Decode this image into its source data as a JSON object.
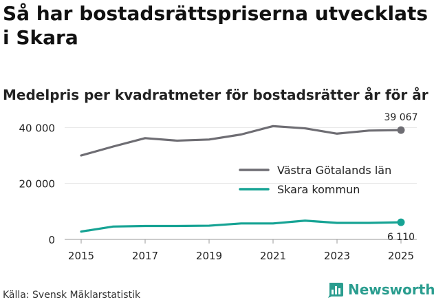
{
  "title": "Så har bostadsrättspriserna utvecklats i Skara",
  "subtitle": "Medelpris per kvadratmeter för bostadsrätter år för år",
  "source": "Källa: Svensk Mäklarstatistik",
  "brand": {
    "name": "Newsworthy",
    "icon": "bar-chart-icon"
  },
  "colors": {
    "series_1": "#6e6d73",
    "series_2": "#16a394",
    "brand": "#2a9d8f"
  },
  "chart_data": {
    "type": "line",
    "x": [
      2015,
      2016,
      2017,
      2018,
      2019,
      2020,
      2021,
      2022,
      2023,
      2024,
      2025
    ],
    "x_ticks": [
      "2015",
      "2017",
      "2019",
      "2021",
      "2023",
      "2025"
    ],
    "y_ticks": [
      "0",
      "20 000",
      "40 000"
    ],
    "ylim": [
      0,
      45000
    ],
    "series": [
      {
        "name": "Västra Götalands län",
        "values": [
          30000,
          33200,
          36200,
          35300,
          35700,
          37500,
          40500,
          39700,
          37800,
          38900,
          39067
        ],
        "end_label": "39 067"
      },
      {
        "name": "Skara kommun",
        "values": [
          2800,
          4600,
          4800,
          4800,
          4900,
          5700,
          5700,
          6700,
          5900,
          5900,
          6110
        ],
        "end_label": "6 110"
      }
    ]
  }
}
